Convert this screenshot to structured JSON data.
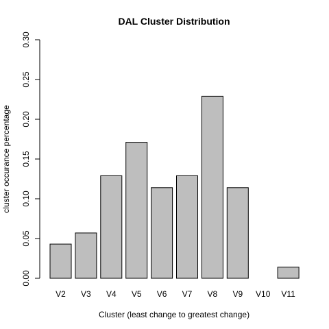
{
  "chart_data": {
    "type": "bar",
    "title": "DAL Cluster Distribution",
    "xlabel": "Cluster (least change to greatest change)",
    "ylabel": "cluster occurance percentage",
    "categories": [
      "V2",
      "V3",
      "V4",
      "V5",
      "V6",
      "V7",
      "V8",
      "V9",
      "V10",
      "V11"
    ],
    "values": [
      0.043,
      0.057,
      0.129,
      0.171,
      0.114,
      0.129,
      0.229,
      0.114,
      0.0,
      0.014
    ],
    "ylim": [
      0,
      0.3
    ],
    "yticks": [
      "0.00",
      "0.05",
      "0.10",
      "0.15",
      "0.20",
      "0.25",
      "0.30"
    ],
    "grid": false,
    "bar_color": "#bebebe"
  }
}
